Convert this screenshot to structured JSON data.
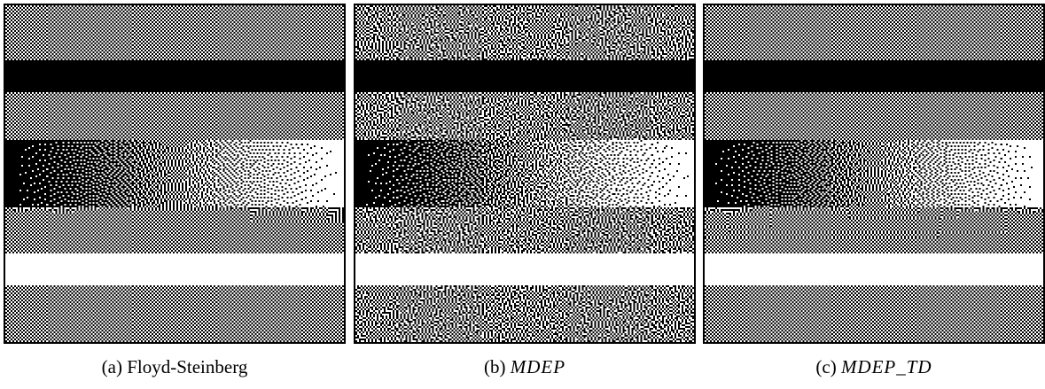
{
  "figure": {
    "panels": [
      {
        "key": "a",
        "caption_prefix": "(a)",
        "caption_title": "Floyd-Steinberg",
        "italic": false,
        "method": "floyd-steinberg"
      },
      {
        "key": "b",
        "caption_prefix": "(b)",
        "caption_title": "MDEP",
        "italic": true,
        "method": "mdep"
      },
      {
        "key": "c",
        "caption_prefix": "(c)",
        "caption_title": "MDEP_TD",
        "italic": true,
        "method": "mdep-td"
      }
    ],
    "test_image_bands": [
      {
        "name": "mid-gray",
        "tone": 0.5
      },
      {
        "name": "black",
        "tone": 0.0
      },
      {
        "name": "mid-gray",
        "tone": 0.5
      },
      {
        "name": "horizontal-ramp",
        "tone": "ramp 0 to 1"
      },
      {
        "name": "mid-gray",
        "tone": 0.5
      },
      {
        "name": "white",
        "tone": 1.0
      },
      {
        "name": "mid-gray",
        "tone": 0.5
      }
    ]
  }
}
